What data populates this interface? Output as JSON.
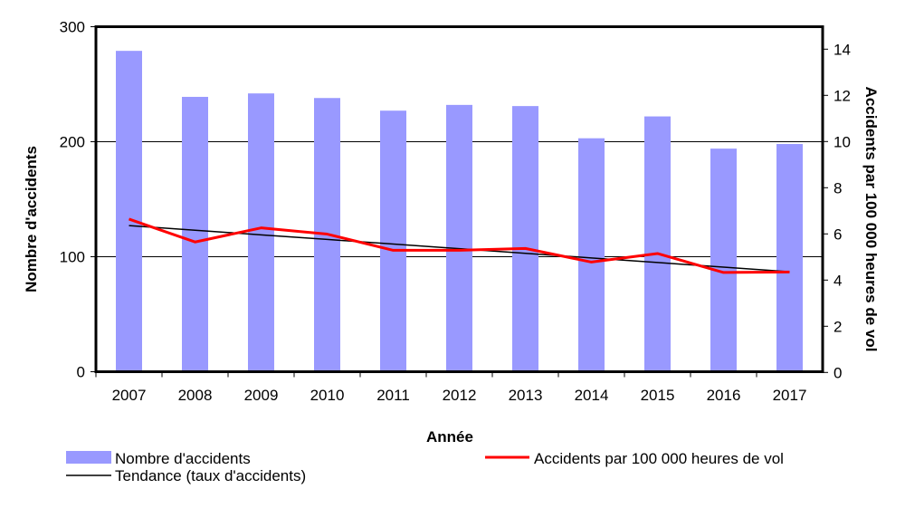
{
  "chart_data": {
    "type": "bar",
    "categories": [
      "2007",
      "2008",
      "2009",
      "2010",
      "2011",
      "2012",
      "2013",
      "2014",
      "2015",
      "2016",
      "2017"
    ],
    "xlabel": "Année",
    "ylabel": "Nombre d'accidents",
    "y2label": "Accidents par 100 000 heures de vol",
    "ylim": [
      0,
      300
    ],
    "y2lim": [
      0,
      15
    ],
    "yticks": [
      0,
      100,
      200,
      300
    ],
    "y2ticks": [
      0,
      2,
      4,
      6,
      8,
      10,
      12,
      14
    ],
    "grid": true,
    "legend_position": "bottom",
    "series": [
      {
        "name": "Nombre d'accidents",
        "type": "bar",
        "axis": "left",
        "color": "#9999ff",
        "values": [
          279,
          239,
          242,
          238,
          227,
          232,
          231,
          203,
          222,
          194,
          198
        ]
      },
      {
        "name": "Accidents par 100 000 heures de vol",
        "type": "line",
        "axis": "right",
        "color": "#ff0000",
        "values": [
          6.64,
          5.65,
          6.26,
          5.99,
          5.29,
          5.29,
          5.37,
          4.78,
          5.15,
          4.33,
          4.35
        ]
      },
      {
        "name": "Tendance (taux d'accidents)",
        "type": "line",
        "axis": "right",
        "color": "#000000",
        "values": [
          6.36,
          6.16,
          5.96,
          5.76,
          5.56,
          5.36,
          5.16,
          4.96,
          4.76,
          4.56,
          4.36
        ]
      }
    ]
  }
}
